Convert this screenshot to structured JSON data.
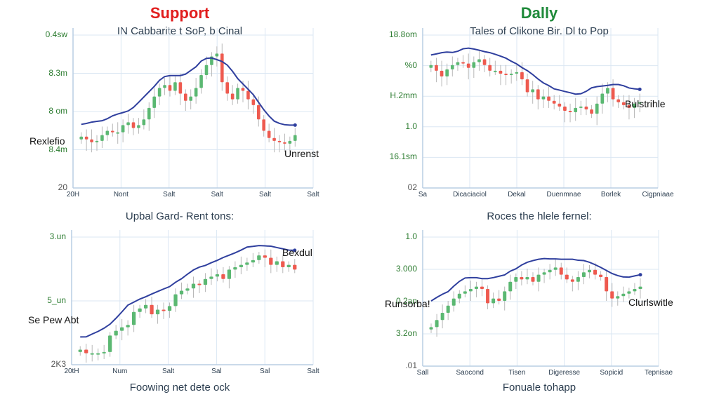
{
  "chart_data": [
    {
      "type": "candlestick",
      "position": "top-left",
      "header": "Support",
      "header_color": "#e11d1d",
      "title": "IN Cabbarite t SoP, b Cinal",
      "xlabel": "",
      "yticks": [
        "0.4sw",
        "8.3m",
        "8 om",
        "8.4m",
        "20"
      ],
      "xticks": [
        "20H",
        "Nont",
        "Salt",
        "Salt",
        "Salt",
        "Salt"
      ],
      "annotations": [
        {
          "text": "Rexlefio",
          "x": 42,
          "y": 193
        },
        {
          "text": "Unrenst",
          "x": 405,
          "y": 211
        }
      ],
      "trend": "rise then fall",
      "ylim": [
        0,
        100
      ],
      "candles_close": [
        32,
        30,
        28,
        29,
        33,
        36,
        35,
        35,
        40,
        42,
        38,
        40,
        44,
        52,
        60,
        66,
        68,
        64,
        70,
        62,
        57,
        60,
        66,
        75,
        82,
        88,
        90,
        70,
        62,
        58,
        66,
        64,
        58,
        54,
        44,
        36,
        31,
        29,
        28,
        27,
        29,
        33
      ]
    },
    {
      "type": "candlestick",
      "position": "top-right",
      "header": "Dally",
      "header_color": "#1f8a3a",
      "title": "Tales of Clikone Bir. Dl to Pop",
      "xlabel": "",
      "yticks": [
        "18.8om",
        "%0",
        "H.2mm",
        "1.0",
        "16.1sm",
        "02"
      ],
      "xticks": [
        "Sa",
        "Dicaciaciol",
        "Dekal",
        "Duenmnae",
        "Borlek",
        "Cigpniaae"
      ],
      "annotations": [
        {
          "text": "Bulstrihle",
          "x": 890,
          "y": 140
        }
      ],
      "trend": "downtrend with late bounce",
      "ylim": [
        0,
        100
      ],
      "candles_close": [
        82,
        78,
        74,
        79,
        82,
        84,
        83,
        80,
        84,
        86,
        82,
        78,
        78,
        76,
        75,
        76,
        77,
        72,
        63,
        65,
        58,
        60,
        57,
        55,
        53,
        50,
        49,
        52,
        53,
        51,
        48,
        55,
        62,
        66,
        58,
        56,
        54,
        52,
        55,
        56
      ]
    },
    {
      "type": "candlestick",
      "position": "bottom-left",
      "header": "",
      "title": "Upbal Gard- Rent tons:",
      "xlabel": "Foowing net dete ock",
      "yticks": [
        "3.un",
        "5_un",
        "2K3"
      ],
      "xticks": [
        "20tH",
        "Num",
        "Salt",
        "Sal",
        "Sal",
        "Salt"
      ],
      "annotations": [
        {
          "text": "Bexdul",
          "x": 402,
          "y": 352
        },
        {
          "text": "Se Pew Abt",
          "x": 40,
          "y": 448
        }
      ],
      "trend": "uptrend",
      "ylim": [
        0,
        100
      ],
      "candles_close": [
        8,
        5,
        5,
        5,
        6,
        20,
        24,
        27,
        29,
        40,
        43,
        46,
        38,
        42,
        41,
        45,
        55,
        58,
        60,
        64,
        63,
        68,
        70,
        72,
        68,
        76,
        78,
        80,
        82,
        84,
        88,
        86,
        80,
        83,
        78,
        80,
        76
      ]
    },
    {
      "type": "candlestick",
      "position": "bottom-right",
      "header": "",
      "title": "Roces the hlele fernel:",
      "xlabel": "Fonuale tohapp",
      "yticks": [
        "1.0",
        "3.000",
        "0.2an",
        "3.2on",
        ".01"
      ],
      "xticks": [
        "Sall",
        "Saocond",
        "Tisen",
        "Digeresse",
        "Sopicid",
        "Tepnisae"
      ],
      "annotations": [
        {
          "text": "Runsorba!",
          "x": 548,
          "y": 425
        },
        {
          "text": "Clurlswitle",
          "x": 895,
          "y": 423
        }
      ],
      "trend": "rise, plateau, drop",
      "ylim": [
        0,
        100
      ],
      "candles_close": [
        28,
        34,
        40,
        46,
        52,
        56,
        58,
        60,
        62,
        60,
        48,
        52,
        50,
        58,
        66,
        70,
        68,
        70,
        66,
        72,
        74,
        76,
        78,
        72,
        68,
        66,
        70,
        74,
        76,
        72,
        70,
        58,
        52,
        54,
        56,
        58,
        60,
        62
      ]
    }
  ]
}
